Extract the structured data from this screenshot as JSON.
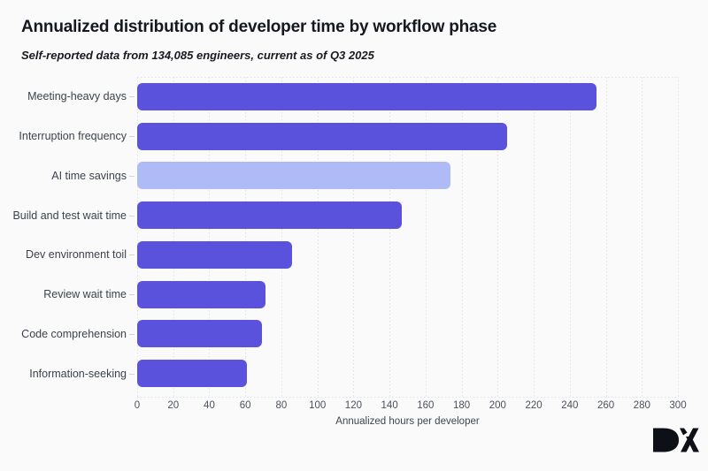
{
  "chart_data": {
    "type": "bar",
    "orientation": "horizontal",
    "title": "Annualized distribution of developer time by workflow phase",
    "subtitle": "Self-reported data from 134,085 engineers, current as of Q3 2025",
    "categories": [
      "Meeting-heavy days",
      "Interruption frequency",
      "AI time savings",
      "Build and test wait time",
      "Dev environment toil",
      "Review wait time",
      "Code comprehension",
      "Information-seeking"
    ],
    "values": [
      255,
      205,
      174,
      147,
      86,
      71,
      69,
      61
    ],
    "highlight_index": 2,
    "highlight_category": "AI time savings",
    "xlabel": "Annualized hours per developer",
    "xlim": [
      0,
      300
    ],
    "xticks": [
      0,
      20,
      40,
      60,
      80,
      100,
      120,
      140,
      160,
      180,
      200,
      220,
      240,
      260,
      280,
      300
    ],
    "grid": "vertical-dotted",
    "legend": "none",
    "colors": {
      "bar": "#5A52DD",
      "highlight_bar": "#AEBBF7",
      "grid": "#E0E2E7",
      "background": "#FAFAFB",
      "title_text": "#15181E",
      "label_text": "#3C424C",
      "tick_text": "#4B515B"
    }
  },
  "branding": {
    "logo_text": "DX"
  }
}
